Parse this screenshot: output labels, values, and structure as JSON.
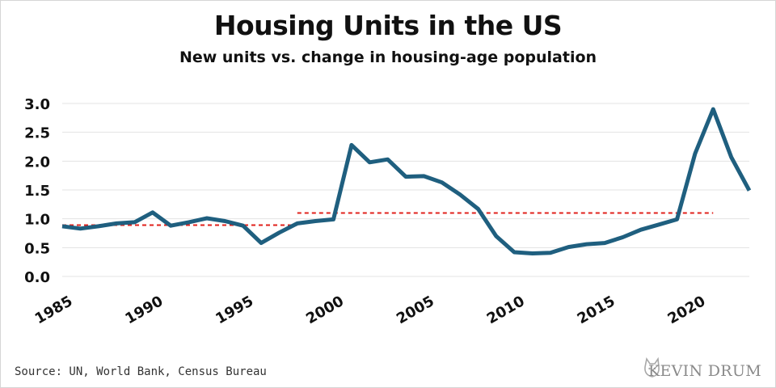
{
  "header": {
    "title": "Housing Units in the US",
    "subtitle": "New units vs. change in housing-age population"
  },
  "footer": {
    "source": "Source: UN, World Bank, Census Bureau",
    "logo_text": "KEVIN DRUM",
    "logo_icon": "cat-icon"
  },
  "colors": {
    "series": "#1f5f7f",
    "reference": "#e0201b",
    "grid": "#e3e3e3",
    "text": "#111111"
  },
  "chart_data": {
    "type": "line",
    "title": "Housing Units in the US",
    "subtitle": "New units vs. change in housing-age population",
    "xlabel": "",
    "ylabel": "",
    "xlim": [
      1985,
      2023
    ],
    "ylim": [
      0,
      3.0
    ],
    "yticks": [
      "0.0",
      "0.5",
      "1.0",
      "1.5",
      "2.0",
      "2.5",
      "3.0"
    ],
    "xticks": [
      "1985",
      "1990",
      "1995",
      "2000",
      "2005",
      "2010",
      "2015",
      "2020"
    ],
    "grid": "horizontal",
    "legend": "none",
    "series": [
      {
        "x": [
          1985,
          1986,
          1987,
          1988,
          1989,
          1990,
          1991,
          1992,
          1993,
          1994,
          1995,
          1996,
          1997,
          1998,
          1999,
          2000,
          2001,
          2002,
          2003,
          2004,
          2005,
          2006,
          2007,
          2008,
          2009,
          2010,
          2011,
          2012,
          2013,
          2014,
          2015,
          2016,
          2017,
          2018,
          2019,
          2020,
          2021,
          2022,
          2023
        ],
        "values": [
          0.87,
          0.83,
          0.87,
          0.92,
          0.94,
          1.11,
          0.88,
          0.94,
          1.01,
          0.96,
          0.88,
          0.58,
          0.76,
          0.92,
          0.96,
          0.99,
          2.28,
          1.98,
          2.03,
          1.73,
          1.74,
          1.63,
          1.42,
          1.17,
          0.7,
          0.42,
          0.4,
          0.41,
          0.51,
          0.56,
          0.58,
          0.68,
          0.81,
          0.9,
          0.99,
          2.13,
          2.9,
          2.07,
          1.49
        ]
      }
    ],
    "reference_lines": [
      {
        "x_start": 1985,
        "x_end": 1998,
        "value": 0.89
      },
      {
        "x_start": 1998,
        "x_end": 2021,
        "value": 1.1
      }
    ]
  }
}
